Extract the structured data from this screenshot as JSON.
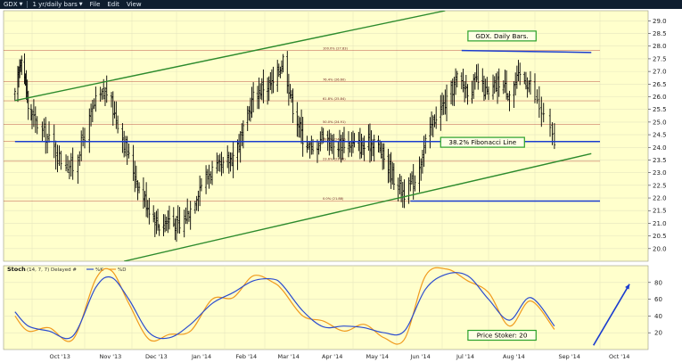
{
  "toolbar": {
    "symbol": "GDX",
    "period": "1 yr/daily bars",
    "menu": [
      "File",
      "Edit",
      "View"
    ]
  },
  "colors": {
    "price_bg": "#ffffcc",
    "bars": "#000000",
    "channel": "#2d8b2d",
    "blue_lines": "#1a3ccf",
    "fib_line": "#aa1f1f",
    "stoch_k": "#2b4ccf",
    "stoch_d": "#f09a1e",
    "callout_border": "#2aa02a",
    "callout_bg": "#ffffe6"
  },
  "chart_data": [
    {
      "type": "bar",
      "subtype": "ohlc",
      "symbol": "GDX",
      "ylim": [
        19.5,
        29.4
      ],
      "y_ticks": [
        "20.0",
        "20.5",
        "21.0",
        "21.5",
        "22.0",
        "22.5",
        "23.0",
        "23.5",
        "24.0",
        "24.5",
        "25.0",
        "25.5",
        "26.0",
        "26.5",
        "27.0",
        "27.5",
        "28.0",
        "28.5",
        "29.0"
      ],
      "x_ticks": [
        "Oct '13",
        "Nov '13",
        "Dec '13",
        "Jan '14",
        "Feb '14",
        "Mar '14",
        "Apr '14",
        "May '14",
        "Jun '14",
        "Jul '14",
        "Aug '14",
        "Sep '14",
        "Oct '14"
      ],
      "close_path": [
        {
          "x": "2013-09-13",
          "y": 26.0
        },
        {
          "x": "2013-09-20",
          "y": 27.7
        },
        {
          "x": "2013-09-27",
          "y": 25.6
        },
        {
          "x": "2013-10-04",
          "y": 24.9
        },
        {
          "x": "2013-10-11",
          "y": 24.3
        },
        {
          "x": "2013-10-18",
          "y": 23.5
        },
        {
          "x": "2013-10-25",
          "y": 23.2
        },
        {
          "x": "2013-11-01",
          "y": 24.5
        },
        {
          "x": "2013-11-08",
          "y": 25.8
        },
        {
          "x": "2013-11-15",
          "y": 26.2
        },
        {
          "x": "2013-11-22",
          "y": 25.0
        },
        {
          "x": "2013-11-29",
          "y": 23.6
        },
        {
          "x": "2013-12-06",
          "y": 22.4
        },
        {
          "x": "2013-12-13",
          "y": 21.6
        },
        {
          "x": "2013-12-20",
          "y": 20.9
        },
        {
          "x": "2013-12-27",
          "y": 21.2
        },
        {
          "x": "2014-01-03",
          "y": 20.8
        },
        {
          "x": "2014-01-10",
          "y": 21.6
        },
        {
          "x": "2014-01-17",
          "y": 22.6
        },
        {
          "x": "2014-01-24",
          "y": 23.1
        },
        {
          "x": "2014-01-31",
          "y": 23.2
        },
        {
          "x": "2014-02-07",
          "y": 23.7
        },
        {
          "x": "2014-02-14",
          "y": 24.6
        },
        {
          "x": "2014-02-21",
          "y": 26.0
        },
        {
          "x": "2014-02-28",
          "y": 26.4
        },
        {
          "x": "2014-03-07",
          "y": 26.5
        },
        {
          "x": "2014-03-14",
          "y": 27.5
        },
        {
          "x": "2014-03-21",
          "y": 25.6
        },
        {
          "x": "2014-03-28",
          "y": 24.4
        },
        {
          "x": "2014-04-04",
          "y": 23.8
        },
        {
          "x": "2014-04-11",
          "y": 24.6
        },
        {
          "x": "2014-04-18",
          "y": 24.0
        },
        {
          "x": "2014-04-25",
          "y": 24.2
        },
        {
          "x": "2014-05-02",
          "y": 24.1
        },
        {
          "x": "2014-05-09",
          "y": 24.0
        },
        {
          "x": "2014-05-16",
          "y": 24.3
        },
        {
          "x": "2014-05-23",
          "y": 23.6
        },
        {
          "x": "2014-05-30",
          "y": 22.8
        },
        {
          "x": "2014-06-06",
          "y": 22.2
        },
        {
          "x": "2014-06-13",
          "y": 22.7
        },
        {
          "x": "2014-06-20",
          "y": 24.2
        },
        {
          "x": "2014-06-27",
          "y": 25.3
        },
        {
          "x": "2014-07-04",
          "y": 25.8
        },
        {
          "x": "2014-07-11",
          "y": 26.7
        },
        {
          "x": "2014-07-18",
          "y": 26.3
        },
        {
          "x": "2014-07-25",
          "y": 26.6
        },
        {
          "x": "2014-08-01",
          "y": 26.0
        },
        {
          "x": "2014-08-08",
          "y": 26.6
        },
        {
          "x": "2014-08-15",
          "y": 26.2
        },
        {
          "x": "2014-08-22",
          "y": 26.8
        },
        {
          "x": "2014-08-29",
          "y": 26.5
        },
        {
          "x": "2014-09-05",
          "y": 25.2
        },
        {
          "x": "2014-09-10",
          "y": 24.2
        }
      ],
      "fibonacci_levels": [
        {
          "label": "100.0% (27.83)",
          "y": 27.83
        },
        {
          "label": "76.4% (26.60)",
          "y": 26.6
        },
        {
          "label": "61.8% (25.84)",
          "y": 25.84
        },
        {
          "label": "50.0% (24.91)",
          "y": 24.91
        },
        {
          "label": "38.2% (24.23)",
          "y": 24.23
        },
        {
          "label": "23.6% (23.45)",
          "y": 23.45
        },
        {
          "label": "0.0% (21.88)",
          "y": 21.88
        }
      ],
      "trendlines": [
        {
          "role": "channel-upper",
          "from": {
            "x": "2013-09-13",
            "y": 25.85
          },
          "to": {
            "x": "2014-07-03",
            "y": 29.4
          }
        },
        {
          "role": "channel-lower",
          "from": {
            "x": "2013-11-26",
            "y": 19.5
          },
          "to": {
            "x": "2014-09-27",
            "y": 23.75
          }
        },
        {
          "role": "resistance",
          "from": {
            "x": "2014-07-14",
            "y": 27.83
          },
          "to": {
            "x": "2014-09-27",
            "y": 27.75
          }
        },
        {
          "role": "support",
          "from": {
            "x": "2014-06-10",
            "y": 21.88
          },
          "to": {
            "x": "2014-10-01",
            "y": 21.88
          }
        },
        {
          "role": "fibonacci",
          "from": {
            "x": "2013-09-13",
            "y": 24.23
          },
          "to": {
            "x": "2014-10-01",
            "y": 24.23
          }
        }
      ],
      "annotations": [
        {
          "text": "GDX. Daily Bars.",
          "x": "2014-08-10",
          "y": 28.4
        },
        {
          "text": "38.2% Fibonacci Line",
          "x": "2014-07-28",
          "y": 24.2
        }
      ]
    },
    {
      "type": "line",
      "title": "Stoch",
      "params": "(14, 7, 7) Delayed #",
      "legend": [
        "%K",
        "%D"
      ],
      "ylim": [
        0,
        100
      ],
      "y_ticks": [
        "20",
        "40",
        "60",
        "80"
      ],
      "series": [
        {
          "name": "%K",
          "points": [
            {
              "x": "2013-09-13",
              "y": 45
            },
            {
              "x": "2013-09-27",
              "y": 28
            },
            {
              "x": "2013-10-11",
              "y": 22
            },
            {
              "x": "2013-10-25",
              "y": 16
            },
            {
              "x": "2013-11-08",
              "y": 74
            },
            {
              "x": "2013-11-18",
              "y": 86
            },
            {
              "x": "2013-11-29",
              "y": 60
            },
            {
              "x": "2013-12-13",
              "y": 20
            },
            {
              "x": "2013-12-27",
              "y": 14
            },
            {
              "x": "2014-01-10",
              "y": 30
            },
            {
              "x": "2014-01-24",
              "y": 55
            },
            {
              "x": "2014-02-07",
              "y": 68
            },
            {
              "x": "2014-02-21",
              "y": 82
            },
            {
              "x": "2014-03-07",
              "y": 84
            },
            {
              "x": "2014-03-14",
              "y": 76
            },
            {
              "x": "2014-03-28",
              "y": 46
            },
            {
              "x": "2014-04-11",
              "y": 27
            },
            {
              "x": "2014-04-25",
              "y": 28
            },
            {
              "x": "2014-05-09",
              "y": 26
            },
            {
              "x": "2014-05-23",
              "y": 20
            },
            {
              "x": "2014-06-06",
              "y": 22
            },
            {
              "x": "2014-06-20",
              "y": 72
            },
            {
              "x": "2014-07-04",
              "y": 90
            },
            {
              "x": "2014-07-18",
              "y": 88
            },
            {
              "x": "2014-08-01",
              "y": 60
            },
            {
              "x": "2014-08-15",
              "y": 35
            },
            {
              "x": "2014-08-29",
              "y": 62
            },
            {
              "x": "2014-09-10",
              "y": 28
            }
          ]
        },
        {
          "name": "%D",
          "points": [
            {
              "x": "2013-09-13",
              "y": 40
            },
            {
              "x": "2013-09-27",
              "y": 22
            },
            {
              "x": "2013-10-11",
              "y": 26
            },
            {
              "x": "2013-10-25",
              "y": 12
            },
            {
              "x": "2013-11-08",
              "y": 84
            },
            {
              "x": "2013-11-18",
              "y": 94
            },
            {
              "x": "2013-11-29",
              "y": 55
            },
            {
              "x": "2013-12-13",
              "y": 12
            },
            {
              "x": "2013-12-27",
              "y": 18
            },
            {
              "x": "2014-01-10",
              "y": 22
            },
            {
              "x": "2014-01-24",
              "y": 60
            },
            {
              "x": "2014-02-07",
              "y": 62
            },
            {
              "x": "2014-02-21",
              "y": 88
            },
            {
              "x": "2014-03-07",
              "y": 80
            },
            {
              "x": "2014-03-14",
              "y": 70
            },
            {
              "x": "2014-03-28",
              "y": 40
            },
            {
              "x": "2014-04-11",
              "y": 34
            },
            {
              "x": "2014-04-25",
              "y": 22
            },
            {
              "x": "2014-05-09",
              "y": 30
            },
            {
              "x": "2014-05-23",
              "y": 14
            },
            {
              "x": "2014-06-06",
              "y": 12
            },
            {
              "x": "2014-06-20",
              "y": 88
            },
            {
              "x": "2014-07-04",
              "y": 96
            },
            {
              "x": "2014-07-18",
              "y": 82
            },
            {
              "x": "2014-08-01",
              "y": 68
            },
            {
              "x": "2014-08-15",
              "y": 28
            },
            {
              "x": "2014-08-29",
              "y": 58
            },
            {
              "x": "2014-09-10",
              "y": 24
            }
          ]
        }
      ],
      "annotations": [
        {
          "text": "Price Stoker: 20",
          "x": "2014-08-10",
          "y": 17
        },
        {
          "type": "arrow",
          "from": {
            "x": "2014-09-28",
            "y": 5
          },
          "to": {
            "x": "2014-10-20",
            "y": 78
          }
        }
      ]
    }
  ]
}
